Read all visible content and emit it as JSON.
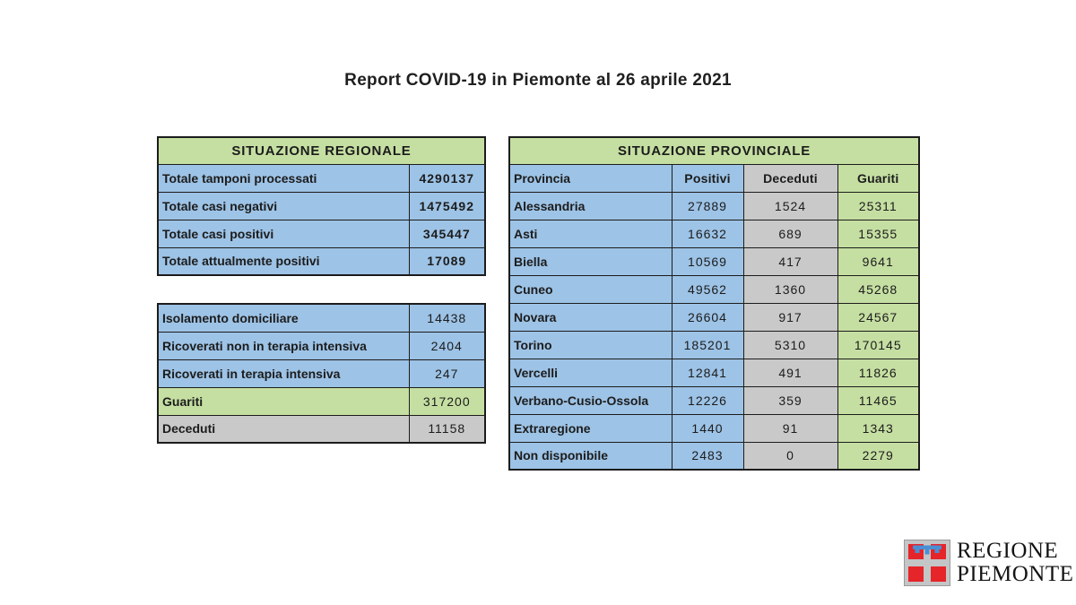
{
  "page": {
    "title": "Report COVID-19 in Piemonte al 26 aprile 2021"
  },
  "colors": {
    "green": "#c5dfa2",
    "blue": "#9dc3e6",
    "gray": "#c9c9c9",
    "logo_red": "#e5252a",
    "logo_blue": "#4a8fd4",
    "logo_gray": "#c4c5c7"
  },
  "regional": {
    "title": "SITUAZIONE REGIONALE",
    "rows": [
      {
        "label": "Totale tamponi processati",
        "value": "4290137",
        "color": "blue"
      },
      {
        "label": "Totale casi negativi",
        "value": "1475492",
        "color": "blue"
      },
      {
        "label": "Totale casi positivi",
        "value": "345447",
        "color": "blue"
      },
      {
        "label": "Totale attualmente positivi",
        "value": "17089",
        "color": "blue"
      }
    ]
  },
  "regional_detail": {
    "rows": [
      {
        "label": "Isolamento domiciliare",
        "value": "14438",
        "color": "blue"
      },
      {
        "label": "Ricoverati non in terapia intensiva",
        "value": "2404",
        "color": "blue"
      },
      {
        "label": "Ricoverati in terapia intensiva",
        "value": "247",
        "color": "blue"
      },
      {
        "label": "Guariti",
        "value": "317200",
        "color": "green"
      },
      {
        "label": "Deceduti",
        "value": "11158",
        "color": "gray"
      }
    ]
  },
  "provincial": {
    "title": "SITUAZIONE PROVINCIALE",
    "columns": [
      "Provincia",
      "Positivi",
      "Deceduti",
      "Guariti"
    ],
    "column_colors": [
      "blue",
      "blue",
      "gray",
      "green"
    ],
    "rows": [
      [
        "Alessandria",
        "27889",
        "1524",
        "25311"
      ],
      [
        "Asti",
        "16632",
        "689",
        "15355"
      ],
      [
        "Biella",
        "10569",
        "417",
        "9641"
      ],
      [
        "Cuneo",
        "49562",
        "1360",
        "45268"
      ],
      [
        "Novara",
        "26604",
        "917",
        "24567"
      ],
      [
        "Torino",
        "185201",
        "5310",
        "170145"
      ],
      [
        "Vercelli",
        "12841",
        "491",
        "11826"
      ],
      [
        "Verbano-Cusio-Ossola",
        "12226",
        "359",
        "11465"
      ],
      [
        "Extraregione",
        "1440",
        "91",
        "1343"
      ],
      [
        "Non disponibile",
        "2483",
        "0",
        "2279"
      ]
    ]
  },
  "logo": {
    "line1": "REGIONE",
    "line2": "PIEMONTE"
  }
}
